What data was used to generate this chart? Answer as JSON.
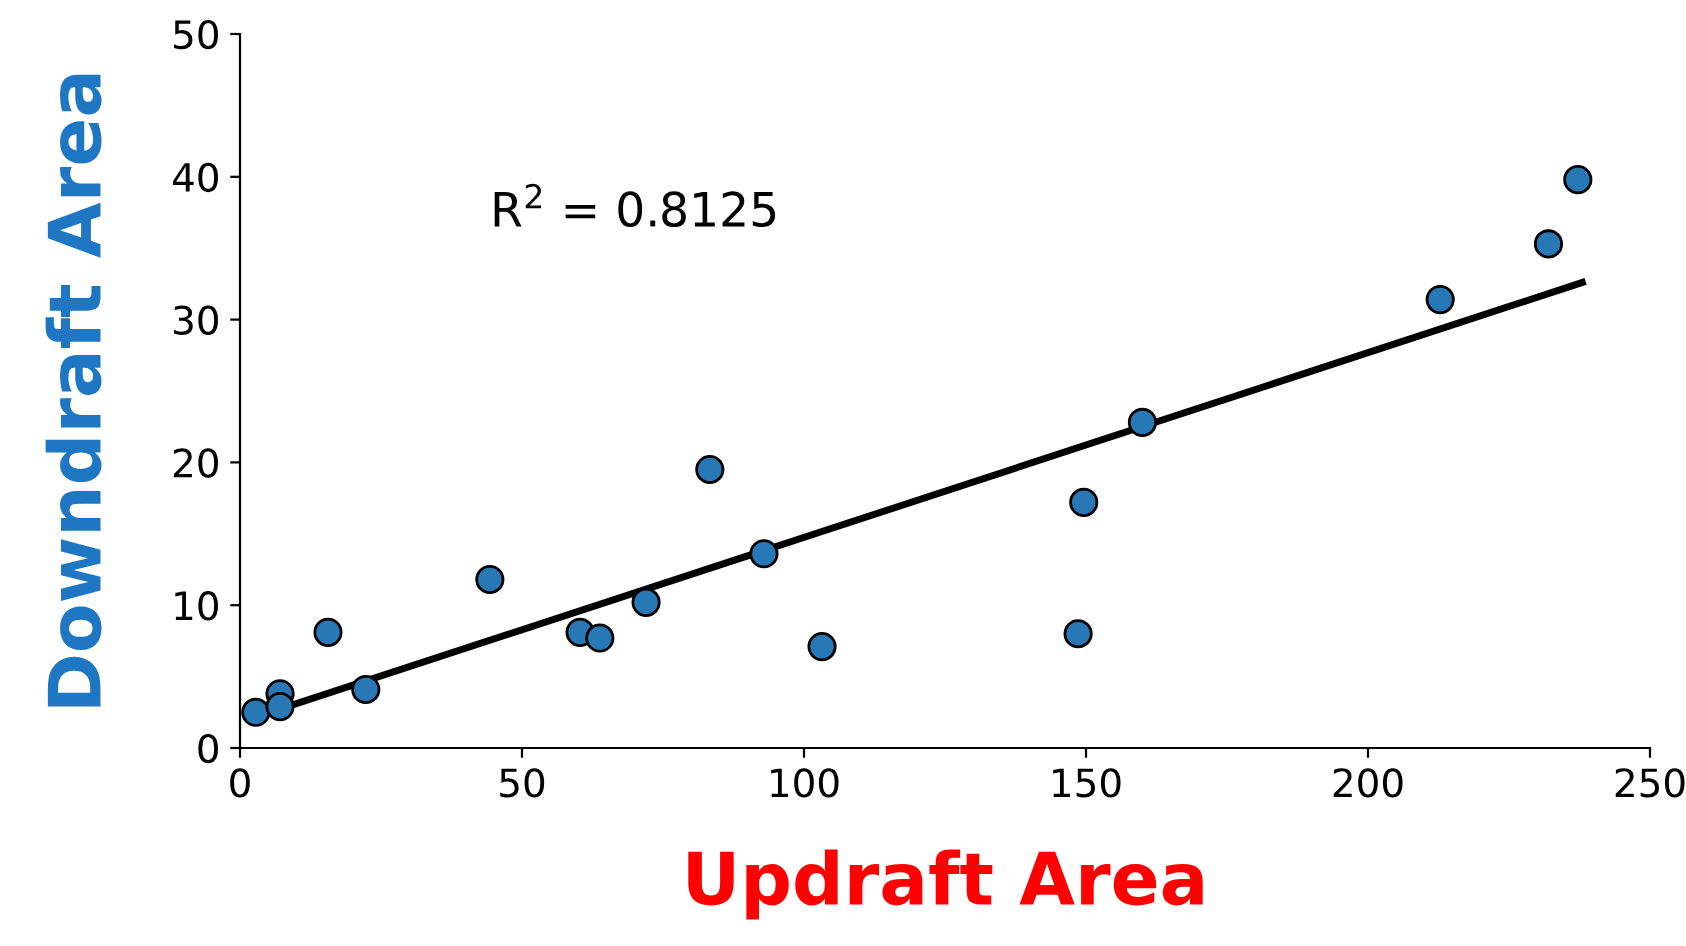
{
  "chart_data": {
    "type": "scatter",
    "xlabel": "Updraft Area",
    "ylabel": "Downdraft Area",
    "annotations": [
      "R$^{2}$ = 0.8125"
    ],
    "xlim": [
      0,
      250
    ],
    "ylim": [
      0,
      50
    ],
    "xticks": [
      0,
      50,
      100,
      150,
      200,
      250
    ],
    "yticks": [
      0,
      10,
      20,
      30,
      40,
      50
    ],
    "grid": false,
    "legend": false,
    "series": [
      {
        "marker": "circle",
        "color": "#2878b5",
        "x": [
          2.8,
          7.1,
          7.1,
          15.6,
          22.3,
          44.3,
          60.3,
          63.8,
          72,
          83.3,
          92.9,
          103.2,
          148.6,
          149.6,
          160,
          212.8,
          232,
          237.2
        ],
        "values": [
          2.5,
          3.8,
          2.9,
          8.1,
          4.1,
          11.8,
          8.1,
          7.7,
          10.2,
          19.5,
          13.6,
          7.1,
          8.0,
          17.2,
          22.8,
          31.4,
          35.3,
          39.8
        ]
      },
      {
        "type": "line",
        "color": "#000000",
        "line_style": "solid",
        "x": [
          3,
          238
        ],
        "values": [
          2.2,
          32.6
        ]
      }
    ]
  }
}
